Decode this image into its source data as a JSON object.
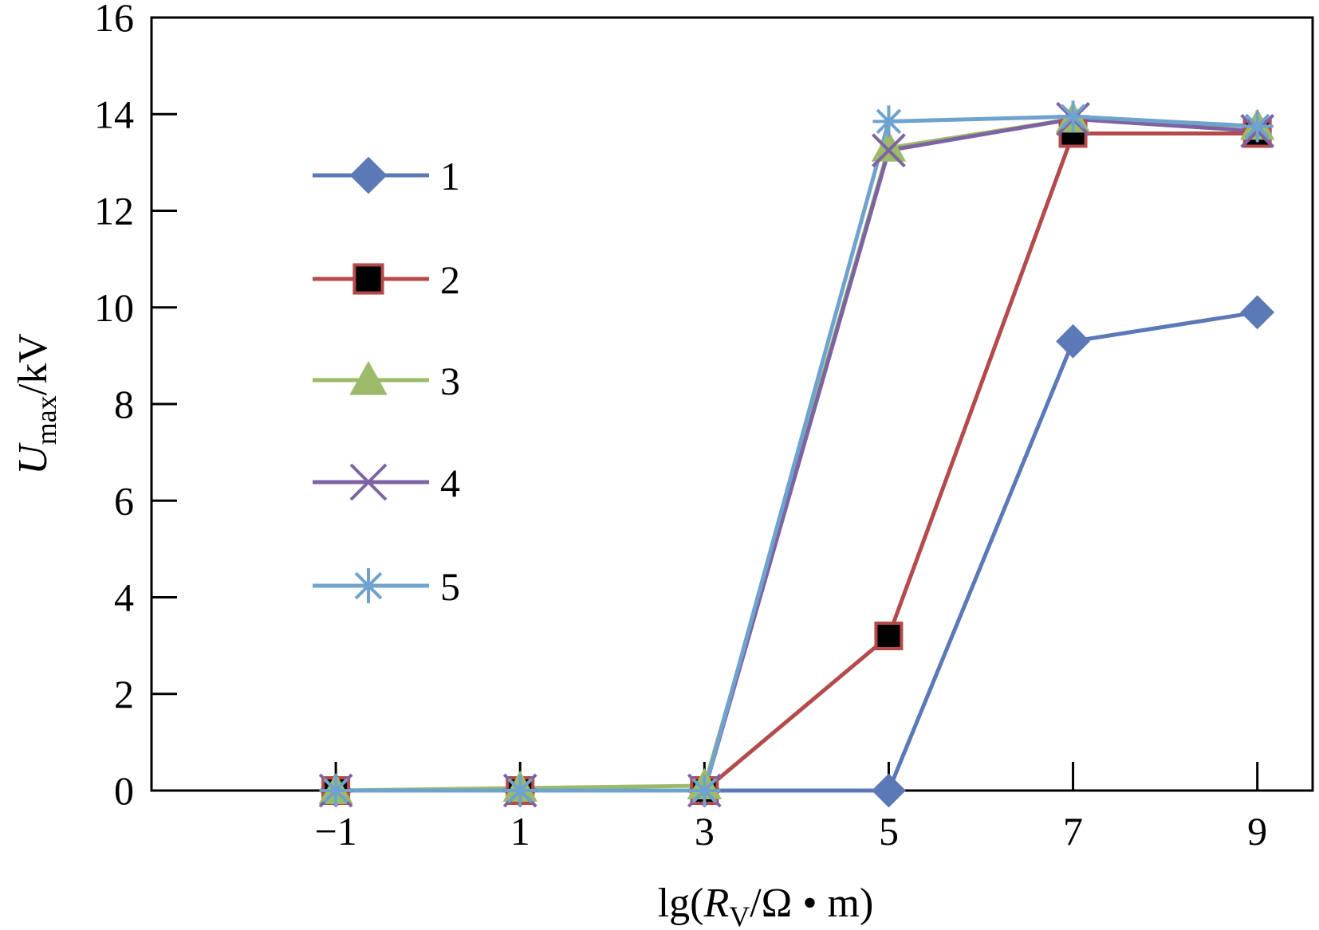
{
  "chart_data": {
    "type": "line",
    "x": [
      -1,
      1,
      3,
      5,
      7,
      9
    ],
    "xticks": [
      "−1",
      "1",
      "3",
      "5",
      "7",
      "9"
    ],
    "yticks": [
      "0",
      "2",
      "4",
      "6",
      "8",
      "10",
      "12",
      "14",
      "16"
    ],
    "xlim": [
      -3,
      9.6
    ],
    "ylim": [
      0,
      16
    ],
    "xlabel": {
      "prefix": "lg(",
      "var": "R",
      "sub": "V",
      "suffix": "/Ω • m)"
    },
    "ylabel": {
      "var": "U",
      "sub": "max",
      "suffix": "/kV"
    },
    "grid": false,
    "legend_position": "left",
    "series": [
      {
        "name": "1",
        "color": "#5B78B7",
        "marker": "diamond",
        "values": [
          0,
          0,
          0,
          0,
          9.3,
          9.9
        ]
      },
      {
        "name": "2",
        "color": "#B44A4B",
        "marker": "square",
        "values": [
          0,
          0,
          0,
          3.2,
          13.6,
          13.6
        ]
      },
      {
        "name": "3",
        "color": "#9BBB6A",
        "marker": "triangle",
        "values": [
          0,
          0.05,
          0.1,
          13.3,
          13.9,
          13.75
        ]
      },
      {
        "name": "4",
        "color": "#7E63A3",
        "marker": "x",
        "values": [
          0,
          0,
          0,
          13.25,
          13.9,
          13.65
        ]
      },
      {
        "name": "5",
        "color": "#6FA3CF",
        "marker": "star",
        "values": [
          0,
          0,
          0,
          13.85,
          13.95,
          13.75
        ]
      }
    ]
  }
}
